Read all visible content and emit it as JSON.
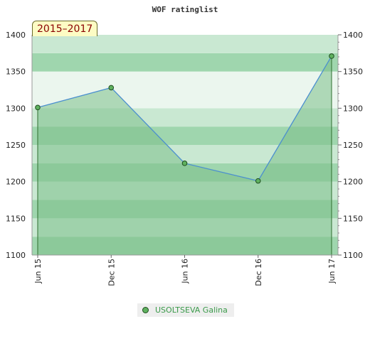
{
  "chart_data": {
    "type": "line",
    "title": "WOF ratinglist",
    "period_label": "2015–2017",
    "categories": [
      "Jun 15",
      "Dec 15",
      "Jun 16",
      "Dec 16",
      "Jun 17"
    ],
    "series": [
      {
        "name": "USOLTSEVA Galina",
        "values": [
          1301,
          1328,
          1225,
          1201,
          1371
        ]
      }
    ],
    "ylim": [
      1100,
      1400
    ],
    "yticks": [
      1100,
      1150,
      1200,
      1250,
      1300,
      1350,
      1400
    ],
    "y_axis_both_sides": true,
    "grid": false,
    "legend_position": "bottom-center",
    "colors": {
      "line": "#4b8fcf",
      "marker_fill": "#5fb15f",
      "marker_stroke": "#1e4d1e",
      "area_fill": "#7bc08a",
      "band_dark": "#acdcb9",
      "band_light": "#ebf6ee"
    }
  }
}
